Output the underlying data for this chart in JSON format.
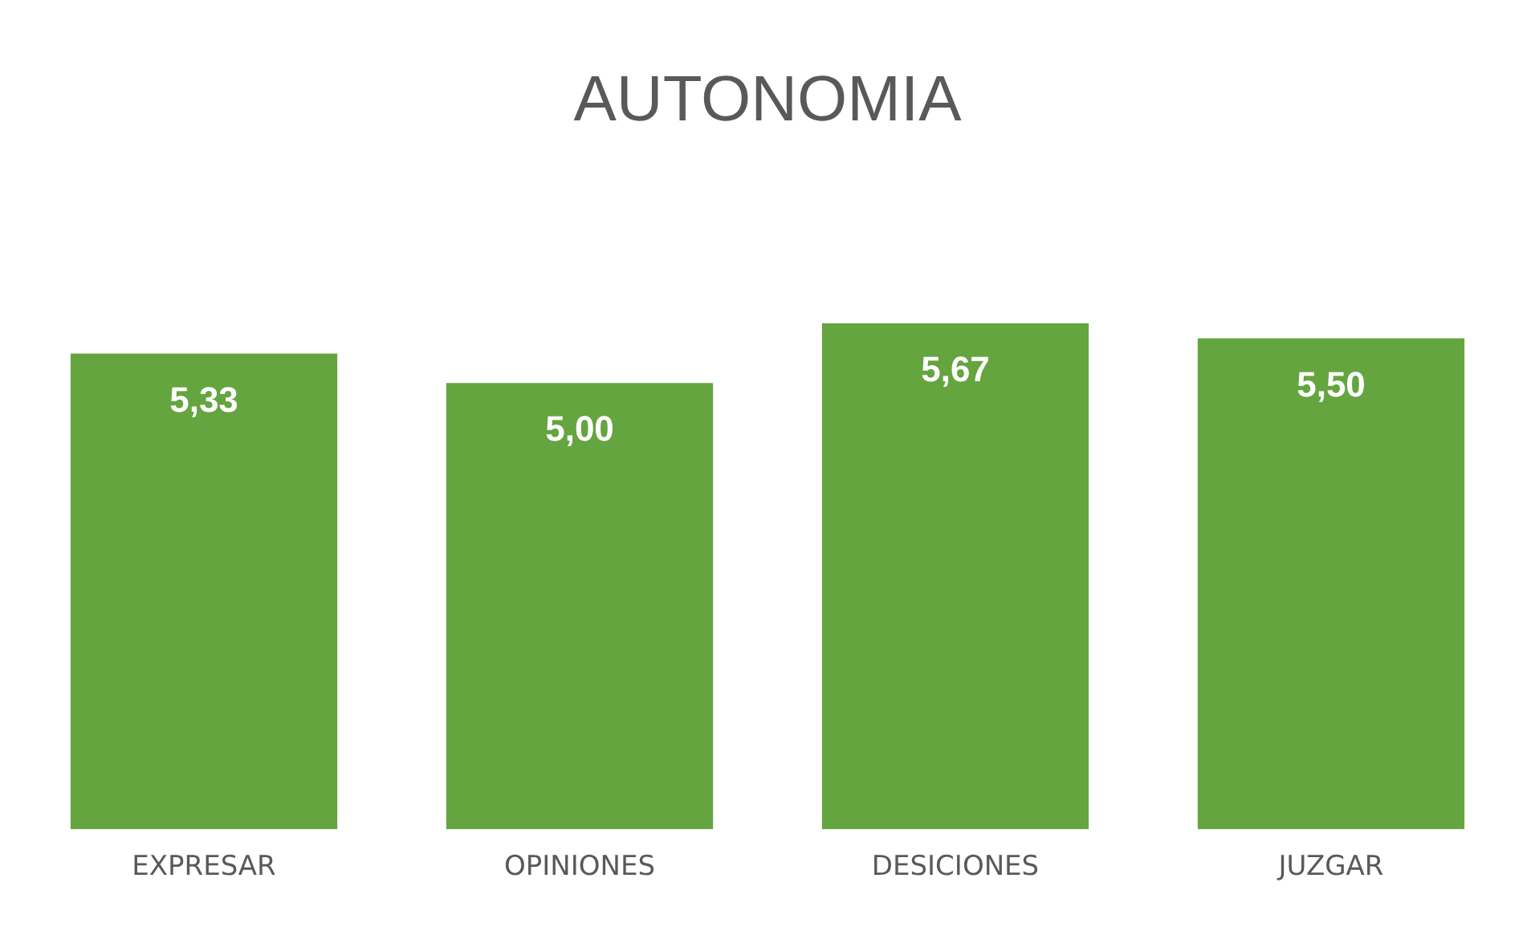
{
  "chart_data": {
    "type": "bar",
    "title": "AUTONOMIA",
    "categories": [
      "EXPRESAR",
      "OPINIONES",
      "DESICIONES",
      "JUZGAR"
    ],
    "values": [
      5.33,
      5.0,
      5.67,
      5.5
    ],
    "value_labels": [
      "5,33",
      "5,00",
      "5,67",
      "5,50"
    ],
    "color": "#65a540",
    "grid": false,
    "legend": false,
    "tick_labels": "x"
  }
}
